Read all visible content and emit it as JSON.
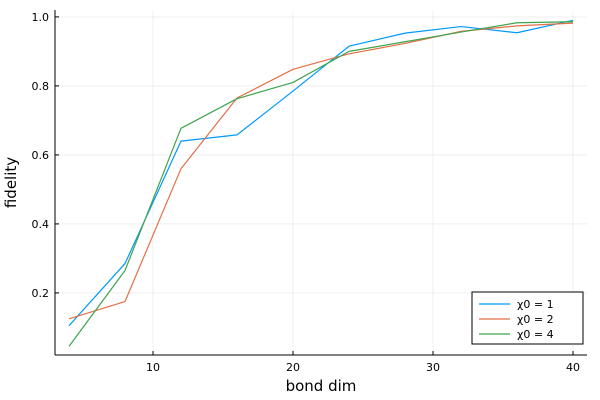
{
  "chart_data": {
    "type": "line",
    "xlabel": "bond dim",
    "ylabel": "fidelity",
    "xlim": [
      3.0,
      41.0
    ],
    "ylim": [
      0.02,
      1.02
    ],
    "x_ticks": [
      10,
      20,
      30,
      40
    ],
    "y_ticks": [
      0.2,
      0.4,
      0.6,
      0.8,
      1.0
    ],
    "x_tick_labels": [
      "10",
      "20",
      "30",
      "40"
    ],
    "y_tick_labels": [
      "0.2",
      "0.4",
      "0.6",
      "0.8",
      "1.0"
    ],
    "grid": true,
    "legend_position": "bottom-right",
    "series": [
      {
        "name": "χ0 = 1",
        "color": "#009AFA",
        "x": [
          4,
          8,
          12,
          16,
          20,
          24,
          28,
          32,
          36,
          40
        ],
        "values": [
          0.105,
          0.285,
          0.64,
          0.658,
          0.785,
          0.915,
          0.953,
          0.972,
          0.954,
          0.99
        ]
      },
      {
        "name": "χ0 = 2",
        "color": "#E36F47",
        "x": [
          4,
          8,
          12,
          16,
          20,
          24,
          28,
          32,
          36,
          40
        ],
        "values": [
          0.125,
          0.175,
          0.56,
          0.765,
          0.848,
          0.893,
          0.923,
          0.958,
          0.974,
          0.982
        ]
      },
      {
        "name": "χ0 = 4",
        "color": "#3EA44E",
        "x": [
          4,
          8,
          12,
          16,
          20,
          24,
          28,
          32,
          36,
          40
        ],
        "values": [
          0.045,
          0.265,
          0.677,
          0.763,
          0.81,
          0.9,
          0.928,
          0.956,
          0.983,
          0.986
        ]
      }
    ]
  }
}
